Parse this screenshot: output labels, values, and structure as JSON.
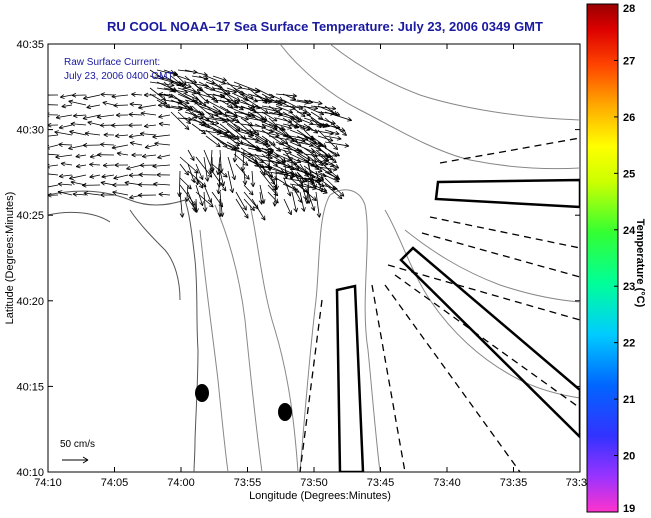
{
  "map": {
    "title": "RU COOL  NOAA–17  Sea Surface Temperature:  July 23, 2006 0349 GMT",
    "x_axis_label": "Longitude (Degrees:Minutes)",
    "y_axis_label": "Latitude (Degrees:Minutes)",
    "x_ticks": [
      "74:10",
      "74:05",
      "74:00",
      "73:55",
      "73:50",
      "73:45",
      "73:40",
      "73:35",
      "73:3"
    ],
    "y_ticks": [
      "40:35",
      "40:30",
      "40:25",
      "40:20",
      "40:15",
      "40:10"
    ],
    "annotation_line1": "Raw Surface Current:",
    "annotation_line2": "July 23, 2006 0400 GMT",
    "scale_label": "50 cm/s"
  },
  "colorbar": {
    "label": "Temperature (°C)",
    "ticks": [
      "28",
      "27",
      "26",
      "25",
      "24",
      "23",
      "22",
      "21",
      "20",
      "19"
    ],
    "min": 19,
    "max": 28
  },
  "colors": {
    "title": "#1a1aa0",
    "annotation": "#1a1aa0",
    "contour": "#888888",
    "coast": "#555555"
  }
}
